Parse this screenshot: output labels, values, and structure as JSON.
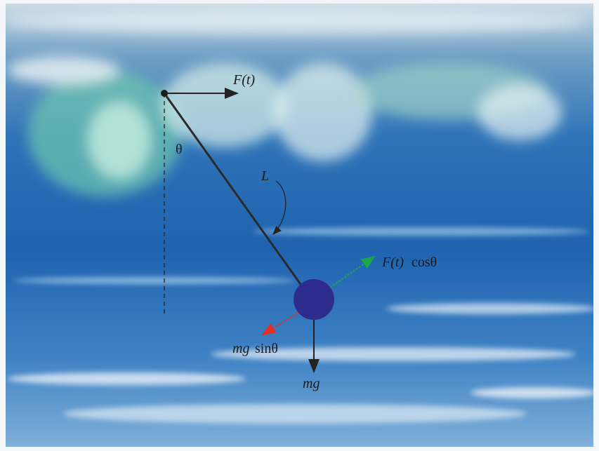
{
  "labels": {
    "force": "F(t)",
    "angle": "θ",
    "length": "L",
    "force_component": {
      "symbol": "F(t)",
      "function": "cosθ"
    },
    "gravity_component": {
      "symbol": "mg",
      "function": "sinθ"
    },
    "gravity": "mg"
  }
}
